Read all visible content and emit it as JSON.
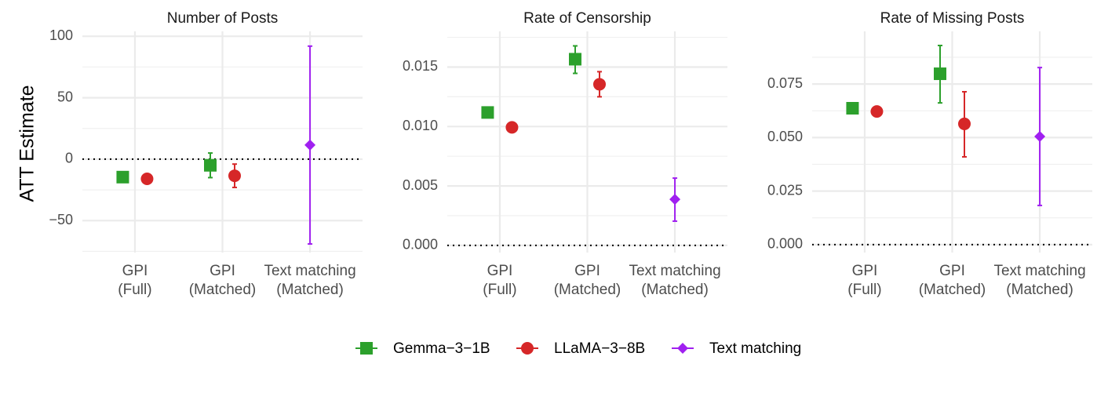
{
  "chart_data": [
    {
      "type": "dot-errorbar",
      "title": "Number of Posts",
      "y_label": "ATT Estimate",
      "categories": [
        "GPI\n(Full)",
        "GPI\n(Matched)",
        "Text matching\n(Matched)"
      ],
      "ylim": [
        -76,
        104
      ],
      "yticks": [
        {
          "value": -50,
          "label": "−50"
        },
        0,
        50,
        100
      ],
      "hline": 0,
      "grid": true,
      "series": [
        {
          "name": "Gemma−3−1B",
          "color": "#2ca02c",
          "marker": "square",
          "values": [
            -14.6,
            -5,
            null
          ],
          "lo": [
            null,
            -15,
            null
          ],
          "hi": [
            null,
            5,
            null
          ]
        },
        {
          "name": "LLaMA−3−8B",
          "color": "#d62728",
          "marker": "circle",
          "values": [
            -16,
            -13.5,
            null
          ],
          "lo": [
            null,
            -23,
            null
          ],
          "hi": [
            null,
            -4,
            null
          ]
        },
        {
          "name": "Text matching",
          "color": "#a020f0",
          "marker": "diamond",
          "values": [
            null,
            null,
            11.5
          ],
          "lo": [
            null,
            null,
            -69
          ],
          "hi": [
            null,
            null,
            92
          ]
        }
      ]
    },
    {
      "type": "dot-errorbar",
      "title": "Rate of Censorship",
      "categories": [
        "GPI\n(Full)",
        "GPI\n(Matched)",
        "Text matching\n(Matched)"
      ],
      "ylim": [
        -0.0006,
        0.018
      ],
      "yticks": [
        {
          "value": 0,
          "label": "0.000"
        },
        {
          "value": 0.005,
          "label": "0.005"
        },
        {
          "value": 0.01,
          "label": "0.010"
        },
        {
          "value": 0.015,
          "label": "0.015"
        }
      ],
      "hline": 0,
      "grid": true,
      "series": [
        {
          "name": "Gemma−3−1B",
          "color": "#2ca02c",
          "marker": "square",
          "values": [
            0.01118,
            0.01566,
            null
          ],
          "lo": [
            null,
            0.01447,
            null
          ],
          "hi": [
            null,
            0.01678,
            null
          ]
        },
        {
          "name": "LLaMA−3−8B",
          "color": "#d62728",
          "marker": "circle",
          "values": [
            0.00993,
            0.01355,
            null
          ],
          "lo": [
            null,
            0.0125,
            null
          ],
          "hi": [
            null,
            0.01461,
            null
          ]
        },
        {
          "name": "Text matching",
          "color": "#a020f0",
          "marker": "diamond",
          "values": [
            null,
            null,
            0.00388
          ],
          "lo": [
            null,
            null,
            0.00204
          ],
          "hi": [
            null,
            null,
            0.00566
          ]
        }
      ]
    },
    {
      "type": "dot-errorbar",
      "title": "Rate of Missing Posts",
      "categories": [
        "GPI\n(Full)",
        "GPI\n(Matched)",
        "Text matching\n(Matched)"
      ],
      "ylim": [
        -0.0037,
        0.0996
      ],
      "yticks": [
        {
          "value": 0,
          "label": "0.000"
        },
        {
          "value": 0.025,
          "label": "0.025"
        },
        {
          "value": 0.05,
          "label": "0.050"
        },
        {
          "value": 0.075,
          "label": "0.075"
        }
      ],
      "hline": 0,
      "grid": true,
      "series": [
        {
          "name": "Gemma−3−1B",
          "color": "#2ca02c",
          "marker": "square",
          "values": [
            0.0637,
            0.0798,
            null
          ],
          "lo": [
            null,
            0.0662,
            null
          ],
          "hi": [
            null,
            0.093,
            null
          ]
        },
        {
          "name": "LLaMA−3−8B",
          "color": "#d62728",
          "marker": "circle",
          "values": [
            0.0622,
            0.0564,
            null
          ],
          "lo": [
            null,
            0.041,
            null
          ],
          "hi": [
            null,
            0.0714,
            null
          ]
        },
        {
          "name": "Text matching",
          "color": "#a020f0",
          "marker": "diamond",
          "values": [
            null,
            null,
            0.0505
          ],
          "lo": [
            null,
            null,
            0.0183
          ],
          "hi": [
            null,
            null,
            0.0827
          ]
        }
      ]
    }
  ]
}
